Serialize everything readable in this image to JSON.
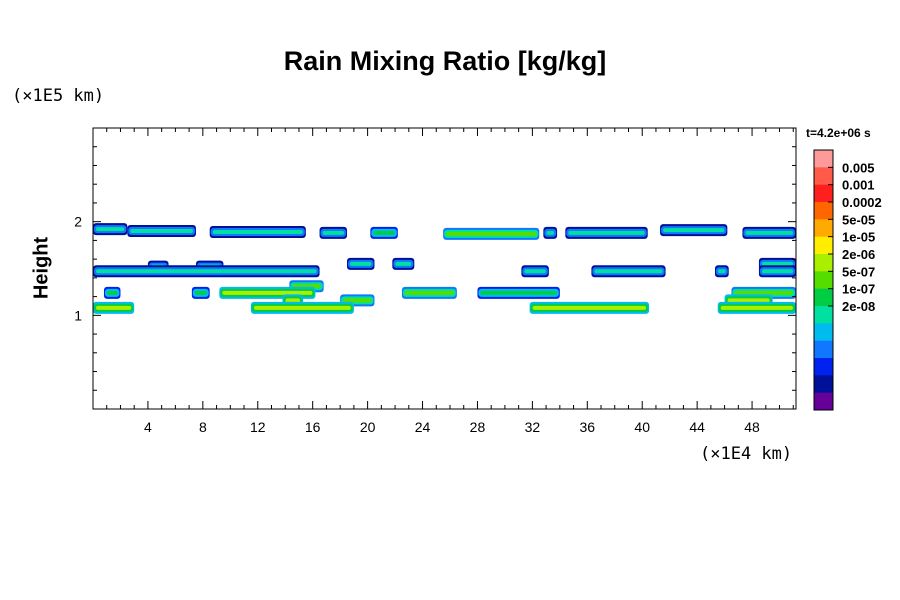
{
  "chart_data": {
    "type": "heatmap",
    "title": "Rain Mixing Ratio [kg/kg]",
    "ylabel": "Height",
    "y_unit_label": "(×1E5 km)",
    "x_unit_label": "(×1E4 km)",
    "time_label": "t=4.2e+06 s",
    "xlim": [
      0,
      51.2
    ],
    "ylim": [
      0,
      3
    ],
    "x_ticks": [
      4,
      8,
      12,
      16,
      20,
      24,
      28,
      32,
      36,
      40,
      44,
      48
    ],
    "y_ticks": [
      1,
      2
    ],
    "colorbar": {
      "labels": [
        "0.005",
        "0.001",
        "0.0002",
        "5e-05",
        "1e-05",
        "2e-06",
        "5e-07",
        "1e-07",
        "2e-08"
      ],
      "colors": [
        "#ff9a9a",
        "#ff5a4a",
        "#ff1f1f",
        "#ff6600",
        "#ffaa00",
        "#ffee00",
        "#aaee00",
        "#55dd00",
        "#00cc44",
        "#00e0a0",
        "#00bbee",
        "#1177ff",
        "#0022ee",
        "#001199",
        "#660099"
      ]
    },
    "series": [
      {
        "y": 1.92,
        "x": [
          0,
          2.5
        ],
        "level": 9
      },
      {
        "y": 1.9,
        "x": [
          2.5,
          7.5
        ],
        "level": 9
      },
      {
        "y": 1.89,
        "x": [
          8.5,
          15.5
        ],
        "level": 9
      },
      {
        "y": 1.88,
        "x": [
          16.5,
          18.5
        ],
        "level": 9
      },
      {
        "y": 1.88,
        "x": [
          20.2,
          22.2
        ],
        "level": 8
      },
      {
        "y": 1.87,
        "x": [
          25.5,
          32.5
        ],
        "level": 7
      },
      {
        "y": 1.88,
        "x": [
          32.8,
          33.8
        ],
        "level": 9
      },
      {
        "y": 1.88,
        "x": [
          34.4,
          40.4
        ],
        "level": 9
      },
      {
        "y": 1.91,
        "x": [
          41.3,
          46.2
        ],
        "level": 9
      },
      {
        "y": 1.88,
        "x": [
          47.3,
          51.2
        ],
        "level": 9
      },
      {
        "y": 1.52,
        "x": [
          4.0,
          5.5
        ],
        "level": 9
      },
      {
        "y": 1.52,
        "x": [
          7.5,
          9.5
        ],
        "level": 9
      },
      {
        "y": 1.55,
        "x": [
          18.5,
          20.5
        ],
        "level": 9
      },
      {
        "y": 1.55,
        "x": [
          21.8,
          23.4
        ],
        "level": 9
      },
      {
        "y": 1.55,
        "x": [
          48.5,
          51.2
        ],
        "level": 9
      },
      {
        "y": 1.47,
        "x": [
          0,
          16.5
        ],
        "level": 9
      },
      {
        "y": 1.47,
        "x": [
          31.2,
          33.2
        ],
        "level": 9
      },
      {
        "y": 1.47,
        "x": [
          36.3,
          41.7
        ],
        "level": 9
      },
      {
        "y": 1.47,
        "x": [
          45.3,
          46.3
        ],
        "level": 9
      },
      {
        "y": 1.47,
        "x": [
          48.5,
          51.2
        ],
        "level": 9
      },
      {
        "y": 1.31,
        "x": [
          14.3,
          16.8
        ],
        "level": 7
      },
      {
        "y": 1.24,
        "x": [
          0.8,
          2.0
        ],
        "level": 8
      },
      {
        "y": 1.24,
        "x": [
          7.2,
          8.5
        ],
        "level": 8
      },
      {
        "y": 1.24,
        "x": [
          9.2,
          16.2
        ],
        "level": 6
      },
      {
        "y": 1.24,
        "x": [
          22.5,
          26.5
        ],
        "level": 7
      },
      {
        "y": 1.24,
        "x": [
          28.0,
          34.0
        ],
        "level": 8
      },
      {
        "y": 1.24,
        "x": [
          46.5,
          51.2
        ],
        "level": 7
      },
      {
        "y": 1.16,
        "x": [
          13.8,
          15.3
        ],
        "level": 6
      },
      {
        "y": 1.16,
        "x": [
          18.0,
          20.5
        ],
        "level": 7
      },
      {
        "y": 1.16,
        "x": [
          46.0,
          49.5
        ],
        "level": 6
      },
      {
        "y": 1.08,
        "x": [
          0,
          3.0
        ],
        "level": 6
      },
      {
        "y": 1.08,
        "x": [
          11.5,
          19.0
        ],
        "level": 6
      },
      {
        "y": 1.08,
        "x": [
          31.8,
          40.5
        ],
        "level": 6
      },
      {
        "y": 1.08,
        "x": [
          45.5,
          51.2
        ],
        "level": 6
      }
    ]
  }
}
